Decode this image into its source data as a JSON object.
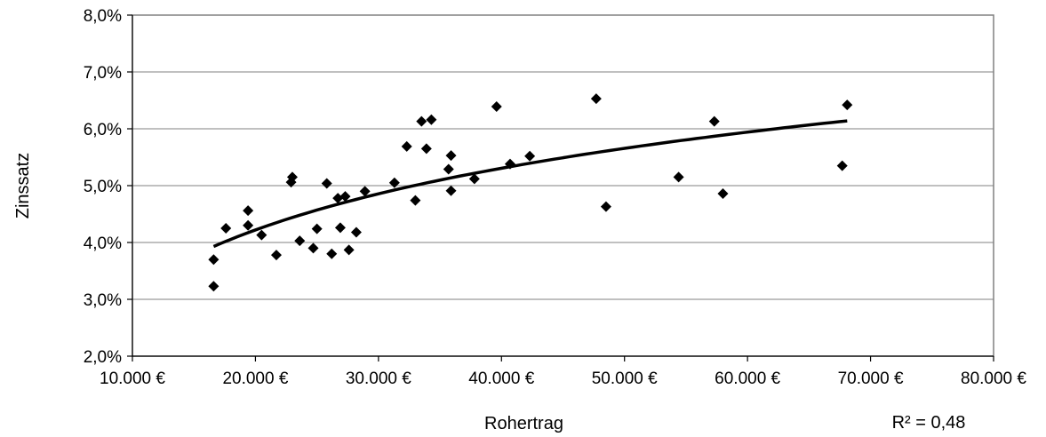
{
  "chart_data": {
    "type": "scatter",
    "xlabel": "Rohertrag",
    "ylabel": "Zinssatz",
    "xlim": [
      10000,
      80000
    ],
    "ylim": [
      0.02,
      0.08
    ],
    "x_ticks": [
      "10.000 €",
      "20.000 €",
      "30.000 €",
      "40.000 €",
      "50.000 €",
      "60.000 €",
      "70.000 €",
      "80.000 €"
    ],
    "y_ticks": [
      "2,0%",
      "3,0%",
      "4,0%",
      "5,0%",
      "6,0%",
      "7,0%",
      "8,0%"
    ],
    "grid": "horizontal",
    "r_squared_label": "R² = 0,48",
    "trendline": {
      "type": "logarithmic",
      "from_x": 16600,
      "to_x": 68100
    },
    "points": [
      [
        16600,
        0.0323
      ],
      [
        16600,
        0.037
      ],
      [
        17600,
        0.0425
      ],
      [
        19400,
        0.043
      ],
      [
        19400,
        0.0456
      ],
      [
        20500,
        0.0413
      ],
      [
        21700,
        0.0378
      ],
      [
        22900,
        0.0506
      ],
      [
        23000,
        0.0515
      ],
      [
        23600,
        0.0403
      ],
      [
        24700,
        0.039
      ],
      [
        25000,
        0.0424
      ],
      [
        25800,
        0.0504
      ],
      [
        26200,
        0.038
      ],
      [
        26700,
        0.0478
      ],
      [
        26900,
        0.0426
      ],
      [
        27300,
        0.0481
      ],
      [
        27600,
        0.0387
      ],
      [
        28200,
        0.0418
      ],
      [
        28900,
        0.049
      ],
      [
        31300,
        0.0505
      ],
      [
        32300,
        0.0569
      ],
      [
        33000,
        0.0474
      ],
      [
        33500,
        0.0613
      ],
      [
        33900,
        0.0565
      ],
      [
        34300,
        0.0616
      ],
      [
        35700,
        0.0529
      ],
      [
        35900,
        0.0491
      ],
      [
        35900,
        0.0553
      ],
      [
        37800,
        0.0512
      ],
      [
        39600,
        0.0639
      ],
      [
        40700,
        0.0538
      ],
      [
        42300,
        0.0552
      ],
      [
        47700,
        0.0653
      ],
      [
        48500,
        0.0463
      ],
      [
        54400,
        0.0515
      ],
      [
        57300,
        0.0613
      ],
      [
        58000,
        0.0486
      ],
      [
        67700,
        0.0535
      ],
      [
        68100,
        0.0642
      ]
    ]
  },
  "styles": {
    "marker_color": "#000000",
    "trend_color": "#000000",
    "grid_color": "#9a9a9a"
  }
}
